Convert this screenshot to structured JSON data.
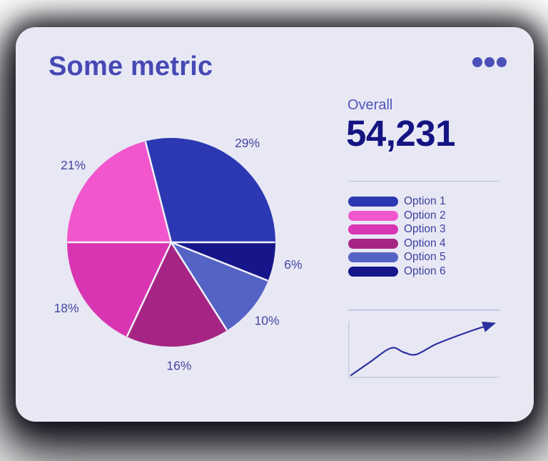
{
  "card": {
    "title": "Some metric",
    "background": "#e8e8f5"
  },
  "menu": {
    "icon": "ellipsis",
    "dot_color": "#4a50b8"
  },
  "overall": {
    "label": "Overall",
    "value": "54,231"
  },
  "chart_data": [
    {
      "type": "pie",
      "title": "Some metric",
      "slices": [
        {
          "label": "Option 1",
          "value": 29,
          "color": "#2c38b2"
        },
        {
          "label": "Option 2",
          "value": 21,
          "color": "#f156cd"
        },
        {
          "label": "Option 3",
          "value": 18,
          "color": "#d935b2"
        },
        {
          "label": "Option 4",
          "value": 16,
          "color": "#a62584"
        },
        {
          "label": "Option 5",
          "value": 10,
          "color": "#5563c5"
        },
        {
          "label": "Option 6",
          "value": 6,
          "color": "#16168a"
        }
      ],
      "value_labels": [
        "29%",
        "21%",
        "18%",
        "16%",
        "10%",
        "6%"
      ],
      "draw_sequence": [
        0,
        5,
        4,
        3,
        2,
        1
      ],
      "start_angle_deg": -14.4,
      "direction": "clockwise",
      "separator_color": "#f2f2fa",
      "label_color": "#44479f",
      "legend_position": "right"
    },
    {
      "type": "line",
      "name": "trend-sparkline",
      "color": "#2b2f9e",
      "points": [
        [
          4,
          92
        ],
        [
          30,
          74
        ],
        [
          60,
          54
        ],
        [
          78,
          60
        ],
        [
          95,
          63
        ],
        [
          122,
          49
        ],
        [
          150,
          38
        ],
        [
          175,
          29
        ],
        [
          203,
          20
        ]
      ],
      "arrow_end": true,
      "axis_color": "#c8c8e0",
      "divider_color": "#b9badd",
      "xlabel": "",
      "ylabel": "",
      "tick_labels": "none",
      "grid": false
    }
  ]
}
